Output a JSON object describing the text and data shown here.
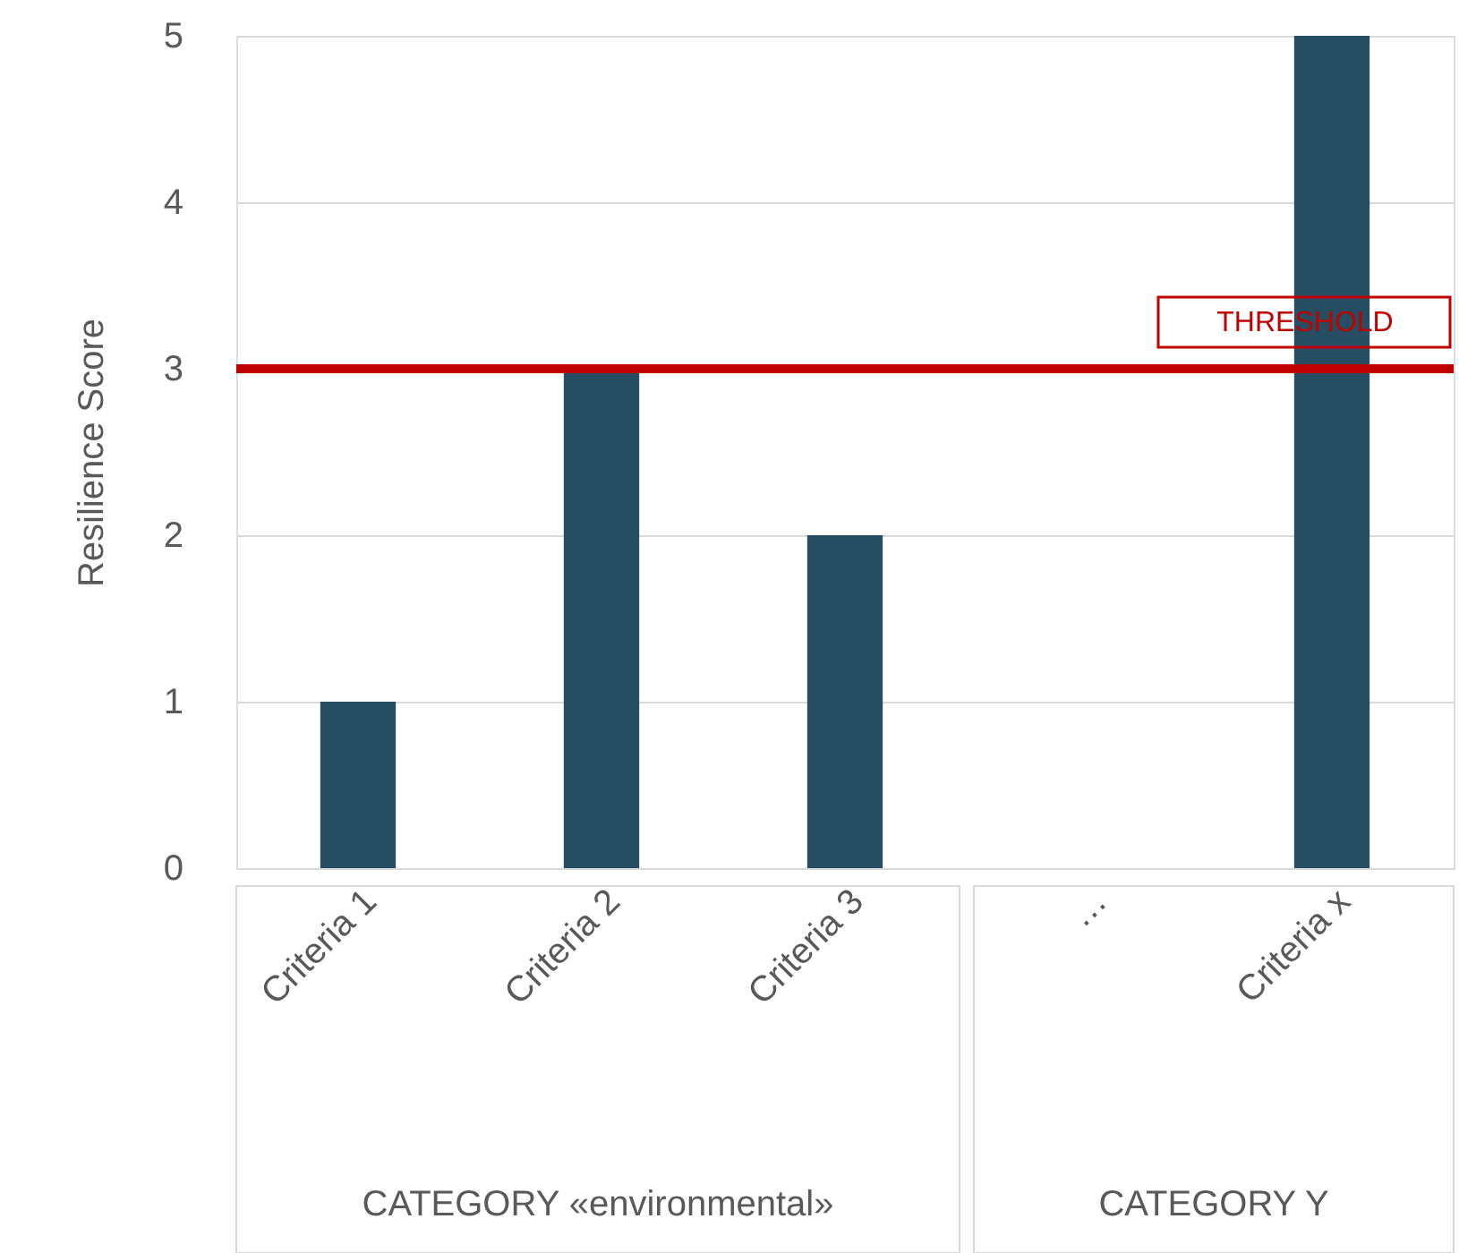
{
  "chart_data": {
    "type": "bar",
    "ylabel": "Resilience Score",
    "categories": [
      "Criteria 1",
      "Criteria 2",
      "Criteria 3",
      "…",
      "Criteria x"
    ],
    "values": [
      1,
      3,
      2,
      null,
      5
    ],
    "color": "#264d61",
    "ylim": [
      0,
      5
    ],
    "yticks": [
      0,
      1,
      2,
      3,
      4,
      5
    ],
    "grid": "y",
    "ref_lines": [
      {
        "axis": "y",
        "value": 3,
        "label": "THRESHOLD",
        "color": "#c00000"
      }
    ],
    "annotations": [
      "CATEGORY «environmental»",
      "CATEGORY Y"
    ]
  }
}
